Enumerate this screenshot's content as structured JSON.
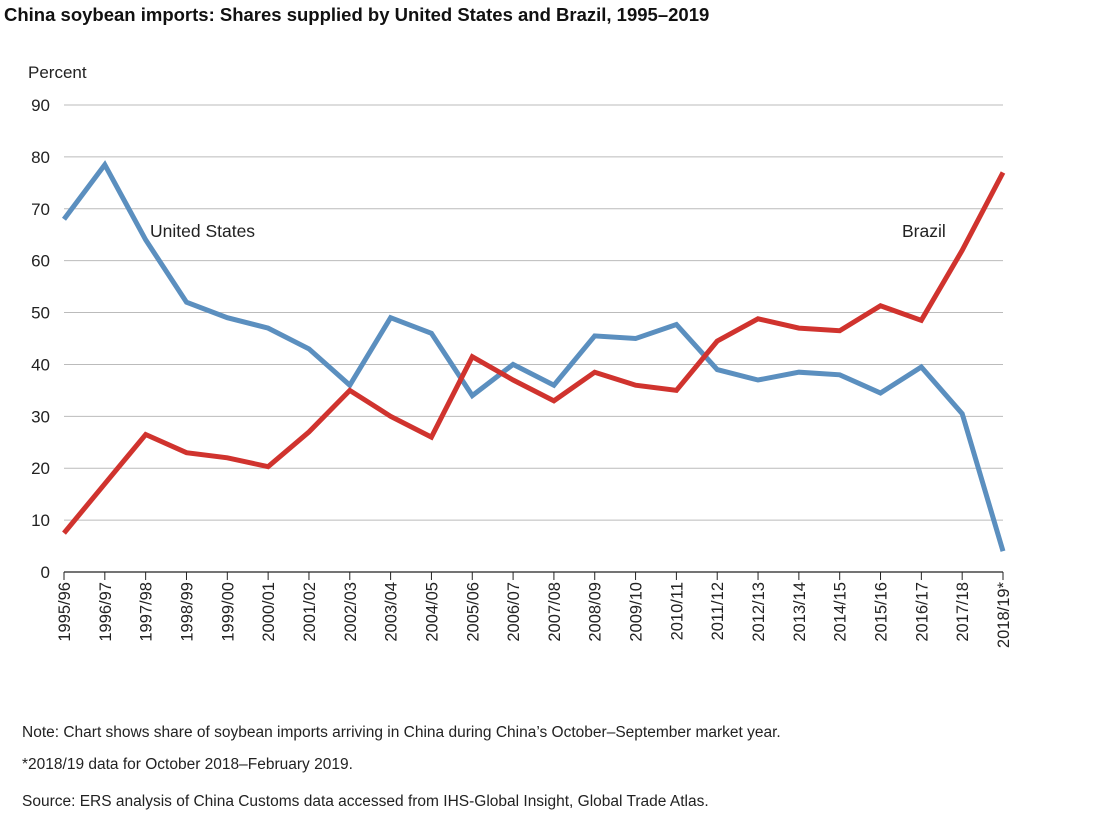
{
  "chart_data": {
    "type": "line",
    "title": "China soybean imports: Shares supplied by United States and Brazil, 1995–2019",
    "ylabel": "Percent",
    "xlabel": "",
    "ylim": [
      0,
      90
    ],
    "yticks": [
      0,
      10,
      20,
      30,
      40,
      50,
      60,
      70,
      80,
      90
    ],
    "grid": true,
    "categories": [
      "1995/96",
      "1996/97",
      "1997/98",
      "1998/99",
      "1999/00",
      "2000/01",
      "2001/02",
      "2002/03",
      "2003/04",
      "2004/05",
      "2005/06",
      "2006/07",
      "2007/08",
      "2008/09",
      "2009/10",
      "2010/11",
      "2011/12",
      "2012/13",
      "2013/14",
      "2014/15",
      "2015/16",
      "2016/17",
      "2017/18",
      "2018/19*"
    ],
    "series": [
      {
        "name": "United States",
        "color": "#5b8fbf",
        "values": [
          68,
          78.5,
          64,
          52,
          49,
          47,
          43,
          36,
          49,
          46,
          34,
          40,
          36,
          45.5,
          45,
          47.7,
          39,
          37,
          38.5,
          38,
          34.5,
          39.5,
          30.5,
          4
        ]
      },
      {
        "name": "Brazil",
        "color": "#d0332e",
        "values": [
          7.5,
          17,
          26.5,
          23,
          22,
          20.3,
          27,
          35,
          30,
          26,
          41.5,
          37,
          33,
          38.5,
          36,
          35,
          44.5,
          48.8,
          47,
          46.5,
          51.3,
          48.5,
          62,
          77
        ]
      }
    ]
  },
  "notes": {
    "note": "Note: Chart shows share of soybean imports arriving in China during China’s October–September market year.",
    "footnote": "*2018/19 data for October 2018–February 2019.",
    "source": "Source: ERS analysis of China Customs data accessed from IHS-Global Insight, Global Trade Atlas."
  }
}
